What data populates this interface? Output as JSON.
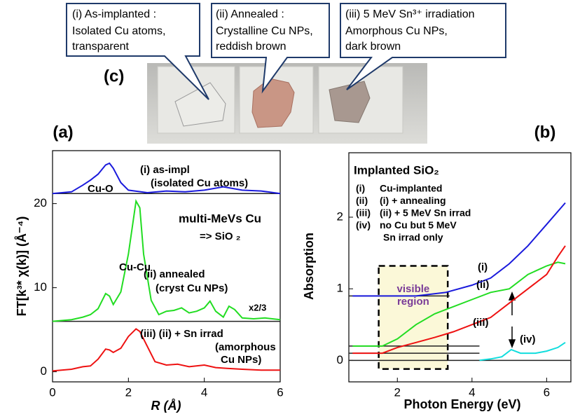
{
  "photo": {
    "label": "(c)",
    "callouts": [
      [
        "(i) As-implanted :",
        "Isolated Cu atoms,",
        "transparent"
      ],
      [
        "(ii) Annealed :",
        "Crystalline Cu NPs,",
        "reddish brown"
      ],
      [
        "(iii) 5 MeV Sn³⁺ irradiation",
        "Amorphous Cu NPs,",
        "dark brown"
      ]
    ]
  },
  "chart_data": [
    {
      "type": "line",
      "panel_label": "(a)",
      "xlabel": "R (Å)",
      "ylabel": "FT[k³* χ(k)]   (Å⁻⁴)",
      "xlim": [
        0,
        6
      ],
      "ylim": [
        -1.2,
        26.3
      ],
      "xticks": [
        0,
        2,
        4,
        6
      ],
      "yticks": [
        0,
        10,
        20
      ],
      "hlines": [
        21.2,
        6.0
      ],
      "annotations": [
        "(i)  as-impl",
        "(isolated Cu atoms)",
        "Cu-O",
        "multi-MeVs Cu",
        "=> SiO ₂",
        "Cu-Cu",
        "(ii)  annealed",
        "(cryst Cu NPs)",
        "x2/3",
        "(iii)   (ii) + Sn irrad",
        "(amorphous",
        "Cu NPs)"
      ],
      "series": [
        {
          "color": "#1a1adc",
          "x": [
            0,
            0.5,
            0.8,
            1.0,
            1.2,
            1.4,
            1.5,
            1.6,
            1.8,
            2.0,
            2.5,
            3,
            3.5,
            4,
            4.5,
            5,
            5.5,
            6
          ],
          "values": [
            21.2,
            21.4,
            22.2,
            22.8,
            23.5,
            24.6,
            24.8,
            24.2,
            22.5,
            21.6,
            21.3,
            21.5,
            21.4,
            21.6,
            22.0,
            21.6,
            21.5,
            21.2
          ]
        },
        {
          "color": "#22dd22",
          "x": [
            0,
            0.5,
            0.8,
            1.0,
            1.2,
            1.4,
            1.5,
            1.6,
            1.8,
            2.0,
            2.2,
            2.3,
            2.4,
            2.6,
            2.8,
            3.0,
            3.2,
            3.4,
            3.6,
            3.8,
            4.0,
            4.15,
            4.3,
            4.5,
            4.65,
            4.8,
            5.0,
            5.3,
            5.6,
            6
          ],
          "values": [
            6.0,
            6.2,
            6.5,
            6.8,
            7.5,
            9.3,
            9.0,
            8.0,
            9.5,
            14,
            20.3,
            19.5,
            14,
            8.5,
            6.8,
            7.2,
            7.3,
            7.6,
            7.0,
            7.2,
            7.6,
            8.4,
            7.2,
            6.5,
            7.8,
            7.4,
            6.4,
            6.3,
            6.4,
            6.2
          ]
        },
        {
          "color": "#ee1111",
          "x": [
            0,
            0.5,
            0.8,
            1.0,
            1.2,
            1.4,
            1.5,
            1.6,
            1.8,
            2.0,
            2.2,
            2.3,
            2.5,
            2.7,
            3.0,
            3.3,
            3.6,
            4.0,
            4.3,
            4.6,
            5.0,
            5.5,
            6
          ],
          "values": [
            0.1,
            0.3,
            0.6,
            0.7,
            1.5,
            2.7,
            2.6,
            2.3,
            2.8,
            4.2,
            5.1,
            4.8,
            3.0,
            1.2,
            0.8,
            0.9,
            0.6,
            0.8,
            0.5,
            0.4,
            0.3,
            0.2,
            0.2
          ]
        }
      ]
    },
    {
      "type": "line",
      "panel_label": "(b)",
      "title": "Implanted SiO₂",
      "xlabel": "Photon Energy  (eV)",
      "ylabel": "Absorption",
      "xlim": [
        0.7,
        6.65
      ],
      "ylim": [
        -0.3,
        2.9
      ],
      "xticks": [
        2,
        4,
        6
      ],
      "yticks": [
        0,
        1,
        2
      ],
      "legend_lines": [
        [
          "(i)",
          "Cu-implanted"
        ],
        [
          "(ii)",
          "(i) + annealing"
        ],
        [
          "(iii)",
          "(ii) + 5 MeV Sn irrad"
        ],
        [
          "(iv)",
          "no Cu but 5 MeV"
        ],
        [
          "",
          "Sn irrad only"
        ]
      ],
      "curve_labels": [
        "(i)",
        "(ii)",
        "(iii)",
        "(iv)"
      ],
      "visible_region": {
        "label": [
          "visible",
          "region"
        ],
        "x": [
          1.5,
          3.35
        ],
        "y": [
          -0.12,
          1.32
        ]
      },
      "hlines": [
        {
          "y": 0.9,
          "x": [
            0.7,
            3.4
          ]
        },
        {
          "y": 0.2,
          "x": [
            0.7,
            4.2
          ]
        },
        {
          "y": 0.1,
          "x": [
            0.7,
            4.2
          ]
        },
        {
          "y": 0,
          "x": [
            0.7,
            6.65
          ]
        }
      ],
      "series": [
        {
          "color": "#1a1adc",
          "x": [
            0.8,
            1.6,
            2.5,
            3.3,
            4,
            4.5,
            5,
            5.5,
            6,
            6.5
          ],
          "values": [
            0.9,
            0.9,
            0.9,
            0.95,
            1.05,
            1.15,
            1.35,
            1.6,
            1.9,
            2.2
          ]
        },
        {
          "color": "#22dd22",
          "x": [
            0.8,
            1.6,
            2,
            2.5,
            3,
            3.5,
            4,
            4.5,
            5,
            5.5,
            6,
            6.3,
            6.5
          ],
          "values": [
            0.2,
            0.2,
            0.3,
            0.5,
            0.65,
            0.75,
            0.85,
            0.95,
            1.0,
            1.2,
            1.32,
            1.37,
            1.35
          ]
        },
        {
          "color": "#ee1111",
          "x": [
            0.8,
            1.6,
            2,
            2.5,
            3,
            3.5,
            4,
            4.5,
            5,
            5.5,
            6,
            6.3,
            6.5
          ],
          "values": [
            0.1,
            0.1,
            0.18,
            0.25,
            0.32,
            0.4,
            0.5,
            0.6,
            0.8,
            1.0,
            1.2,
            1.45,
            1.6
          ]
        },
        {
          "color": "#11dddd",
          "x": [
            4.2,
            4.5,
            4.8,
            5.05,
            5.3,
            5.7,
            6,
            6.3,
            6.5
          ],
          "values": [
            0,
            0.02,
            0.05,
            0.15,
            0.1,
            0.1,
            0.13,
            0.18,
            0.25
          ]
        }
      ]
    }
  ]
}
